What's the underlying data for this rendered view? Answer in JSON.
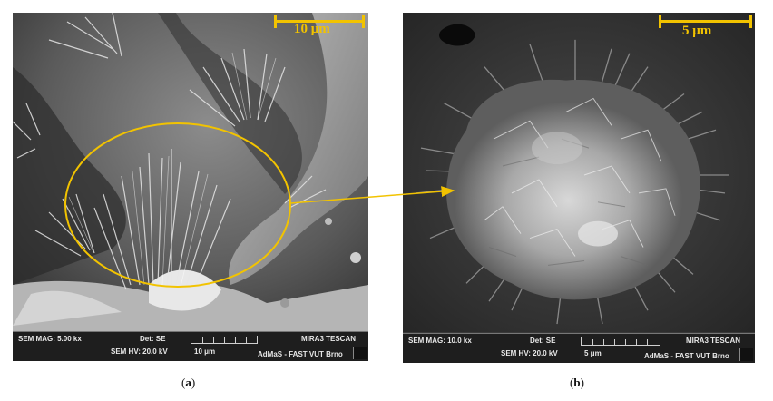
{
  "panel_a": {
    "scale_label": "10 μm",
    "info": {
      "mag": "SEM MAG: 5.00 kx",
      "det": "Det: SE",
      "hv": "SEM HV: 20.0 kV",
      "scale": "10 μm",
      "brand": "MIRA3 TESCAN",
      "lab": "AdMaS - FAST VUT Brno"
    },
    "caption_letter": "a"
  },
  "panel_b": {
    "scale_label": "5 μm",
    "info": {
      "mag": "SEM MAG: 10.0 kx",
      "det": "Det: SE",
      "hv": "SEM HV: 20.0 kV",
      "scale": "5 μm",
      "brand": "MIRA3 TESCAN",
      "lab": "AdMaS - FAST VUT Brno"
    },
    "caption_letter": "b"
  },
  "colors": {
    "annotation": "#f2c300",
    "infobar": "#1e1e1e"
  }
}
